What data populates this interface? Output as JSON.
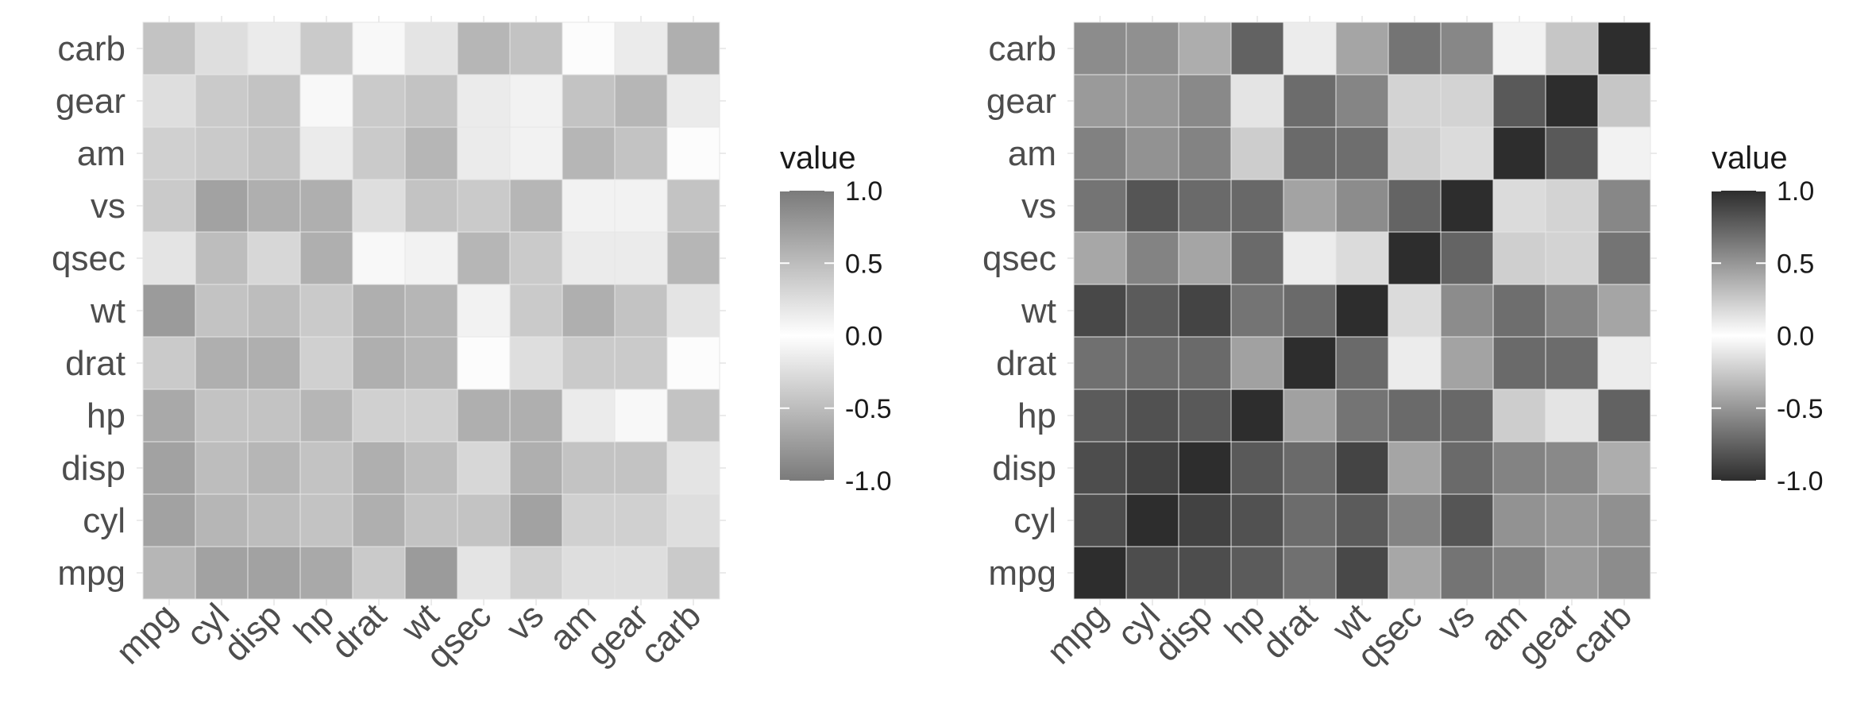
{
  "chart_data": [
    {
      "type": "heatmap",
      "name": "scaled-grey-heatmap",
      "variables": [
        "mpg",
        "cyl",
        "disp",
        "hp",
        "drat",
        "wt",
        "qsec",
        "vs",
        "am",
        "gear",
        "carb"
      ],
      "x_categories": [
        "mpg",
        "cyl",
        "disp",
        "hp",
        "drat",
        "wt",
        "qsec",
        "vs",
        "am",
        "gear",
        "carb"
      ],
      "y_categories": [
        "mpg",
        "cyl",
        "disp",
        "hp",
        "drat",
        "wt",
        "qsec",
        "vs",
        "am",
        "gear",
        "carb"
      ],
      "note": "matrix rows ordered top-to-bottom (carb first); columns ordered left-to-right (mpg first); values = cell intensity on legend scale",
      "matrix_rows": [
        {
          "row": "carb",
          "values": [
            0.45,
            0.25,
            0.15,
            0.4,
            0.05,
            0.2,
            0.55,
            0.45,
            0.02,
            0.15,
            0.6
          ]
        },
        {
          "row": "gear",
          "values": [
            0.25,
            0.4,
            0.45,
            0.05,
            0.4,
            0.45,
            0.15,
            0.1,
            0.45,
            0.55,
            0.15
          ]
        },
        {
          "row": "am",
          "values": [
            0.35,
            0.4,
            0.45,
            0.15,
            0.4,
            0.55,
            0.15,
            0.1,
            0.55,
            0.45,
            0.02
          ]
        },
        {
          "row": "vs",
          "values": [
            0.4,
            0.7,
            0.6,
            0.6,
            0.25,
            0.45,
            0.4,
            0.55,
            0.1,
            0.1,
            0.45
          ]
        },
        {
          "row": "qsec",
          "values": [
            0.2,
            0.5,
            0.3,
            0.6,
            0.05,
            0.1,
            0.55,
            0.4,
            0.15,
            0.15,
            0.55
          ]
        },
        {
          "row": "wt",
          "values": [
            0.75,
            0.45,
            0.5,
            0.4,
            0.6,
            0.55,
            0.1,
            0.4,
            0.6,
            0.45,
            0.2
          ]
        },
        {
          "row": "drat",
          "values": [
            0.4,
            0.6,
            0.6,
            0.35,
            0.6,
            0.55,
            0.02,
            0.25,
            0.4,
            0.4,
            0.02
          ]
        },
        {
          "row": "hp",
          "values": [
            0.65,
            0.45,
            0.45,
            0.55,
            0.35,
            0.35,
            0.6,
            0.6,
            0.15,
            0.05,
            0.45
          ]
        },
        {
          "row": "disp",
          "values": [
            0.7,
            0.5,
            0.55,
            0.45,
            0.6,
            0.5,
            0.3,
            0.6,
            0.45,
            0.45,
            0.2
          ]
        },
        {
          "row": "cyl",
          "values": [
            0.7,
            0.55,
            0.5,
            0.45,
            0.6,
            0.45,
            0.45,
            0.7,
            0.35,
            0.35,
            0.25
          ]
        },
        {
          "row": "mpg",
          "values": [
            0.55,
            0.7,
            0.7,
            0.65,
            0.4,
            0.75,
            0.2,
            0.35,
            0.25,
            0.25,
            0.4
          ]
        }
      ],
      "legend": {
        "title": "value",
        "ticks": [
          "1.0",
          "0.5",
          "0.0",
          "-0.5",
          "-1.0"
        ],
        "range": [
          -1.0,
          1.0
        ],
        "scale": "symmetric: |value| maps to grey darkness, max darkness #7a7a7a",
        "position": "right"
      }
    },
    {
      "type": "heatmap",
      "name": "correlation-grey-heatmap",
      "variables": [
        "mpg",
        "cyl",
        "disp",
        "hp",
        "drat",
        "wt",
        "qsec",
        "vs",
        "am",
        "gear",
        "carb"
      ],
      "x_categories": [
        "mpg",
        "cyl",
        "disp",
        "hp",
        "drat",
        "wt",
        "qsec",
        "vs",
        "am",
        "gear",
        "carb"
      ],
      "y_categories": [
        "mpg",
        "cyl",
        "disp",
        "hp",
        "drat",
        "wt",
        "qsec",
        "vs",
        "am",
        "gear",
        "carb"
      ],
      "note": "mtcars correlation matrix, symmetric; values = correlation",
      "matrix": [
        [
          1.0,
          -0.85,
          -0.85,
          -0.78,
          0.68,
          -0.87,
          0.42,
          0.66,
          0.6,
          0.48,
          -0.55
        ],
        [
          -0.85,
          1.0,
          0.9,
          0.83,
          -0.7,
          0.78,
          -0.59,
          -0.81,
          -0.52,
          -0.49,
          0.53
        ],
        [
          -0.85,
          0.9,
          1.0,
          0.79,
          -0.71,
          0.89,
          -0.43,
          -0.71,
          -0.59,
          -0.56,
          0.39
        ],
        [
          -0.78,
          0.83,
          0.79,
          1.0,
          -0.45,
          0.66,
          -0.71,
          -0.72,
          -0.24,
          -0.13,
          0.75
        ],
        [
          0.68,
          -0.7,
          -0.71,
          -0.45,
          1.0,
          -0.71,
          0.09,
          0.44,
          0.71,
          0.7,
          -0.09
        ],
        [
          -0.87,
          0.78,
          0.89,
          0.66,
          -0.71,
          1.0,
          -0.17,
          -0.55,
          -0.69,
          -0.58,
          0.43
        ],
        [
          0.42,
          -0.59,
          -0.43,
          -0.71,
          0.09,
          -0.17,
          1.0,
          0.74,
          -0.23,
          -0.21,
          -0.66
        ],
        [
          0.66,
          -0.81,
          -0.71,
          -0.72,
          0.44,
          -0.55,
          0.74,
          1.0,
          0.17,
          0.21,
          -0.57
        ],
        [
          0.6,
          -0.52,
          -0.59,
          -0.24,
          0.71,
          -0.69,
          -0.23,
          0.17,
          1.0,
          0.79,
          0.06
        ],
        [
          0.48,
          -0.49,
          -0.56,
          -0.13,
          0.7,
          -0.58,
          -0.21,
          0.21,
          0.79,
          1.0,
          0.27
        ],
        [
          -0.55,
          0.53,
          0.39,
          0.75,
          -0.09,
          0.43,
          -0.66,
          -0.57,
          0.06,
          0.27,
          1.0
        ]
      ],
      "legend": {
        "title": "value",
        "ticks": [
          "1.0",
          "0.5",
          "0.0",
          "-0.5",
          "-1.0"
        ],
        "range": [
          -1.0,
          1.0
        ],
        "scale": "symmetric: |value| maps to grey darkness, max darkness #2d2d2d",
        "position": "right"
      }
    }
  ],
  "colors": {
    "white": "#ffffff",
    "dark_left": "#7a7a7a",
    "dark_right": "#2d2d2d",
    "cell_border": "#e6e6e6",
    "grid": "#ebebeb",
    "tick_text": "#4d4d4d",
    "legend_text": "#1a1a1a"
  }
}
